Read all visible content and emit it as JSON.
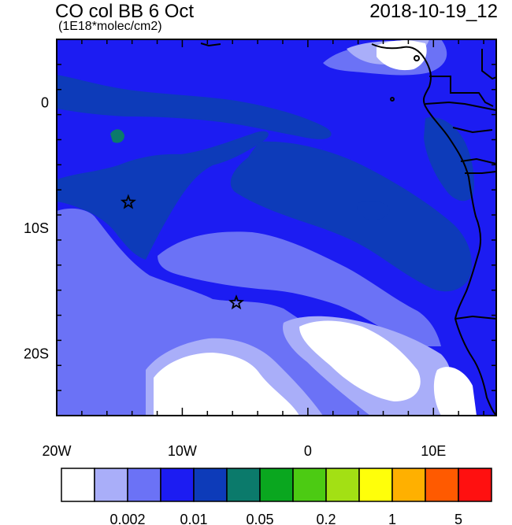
{
  "header": {
    "title": "CO col BB 6 Oct",
    "units": "(1E18*molec/cm2)",
    "datetime": "2018-10-19_12"
  },
  "map": {
    "lon_range": [
      -20,
      15
    ],
    "lat_range": [
      -25,
      5
    ],
    "x_ticks": [
      {
        "lon": -20,
        "label": "20W"
      },
      {
        "lon": -10,
        "label": "10W"
      },
      {
        "lon": 0,
        "label": "0"
      },
      {
        "lon": 10,
        "label": "10E"
      }
    ],
    "y_ticks": [
      {
        "lat": 0,
        "label": "0"
      },
      {
        "lat": -10,
        "label": "10S"
      },
      {
        "lat": -20,
        "label": "20S"
      }
    ],
    "markers": [
      {
        "name": "star-marker",
        "lon": -14.3,
        "lat": -8.0
      },
      {
        "name": "star-marker",
        "lon": -5.7,
        "lat": -16.0
      }
    ]
  },
  "colorbar": {
    "colors": [
      "#ffffff",
      "#a9aef9",
      "#6b72f6",
      "#1c1cf2",
      "#0d3bb9",
      "#0b7a6b",
      "#0aa71f",
      "#4ccb13",
      "#a3e014",
      "#ffff0a",
      "#ffb000",
      "#ff5a00",
      "#ff1010"
    ],
    "labels": [
      {
        "after_box": 2,
        "text": "0.002"
      },
      {
        "after_box": 4,
        "text": "0.01"
      },
      {
        "after_box": 6,
        "text": "0.05"
      },
      {
        "after_box": 8,
        "text": "0.2"
      },
      {
        "after_box": 10,
        "text": "1"
      },
      {
        "after_box": 12,
        "text": "5"
      }
    ]
  }
}
